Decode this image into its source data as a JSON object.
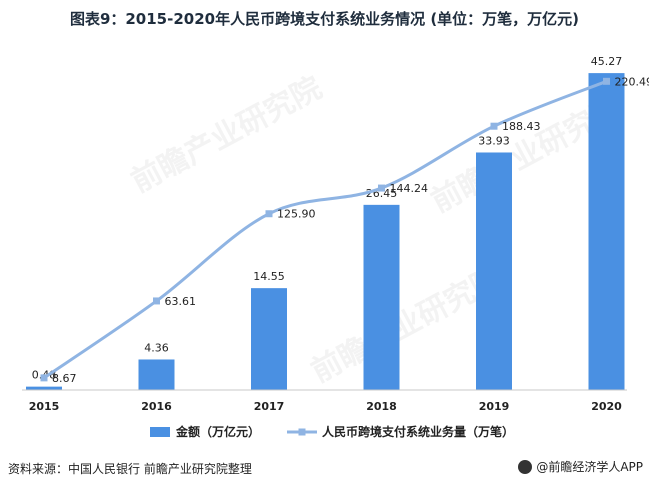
{
  "title": "图表9：2015-2020年人民币跨境支付系统业务情况 (单位：万笔，万亿元)",
  "source": "资料来源：中国人民银行 前瞻产业研究院整理",
  "brand": "@前瞻经济学人APP",
  "watermark": "前瞻产业研究院",
  "chart_data": {
    "type": "bar",
    "categories": [
      "2015",
      "2016",
      "2017",
      "2018",
      "2019",
      "2020"
    ],
    "series": [
      {
        "name": "金额（万亿元）",
        "type": "bar",
        "color": "#4a90e2",
        "values": [
          0.48,
          4.36,
          14.55,
          26.45,
          33.93,
          45.27
        ],
        "labels": [
          "0.48",
          "4.36",
          "14.55",
          "26.45",
          "33.93",
          "45.27"
        ]
      },
      {
        "name": "人民币跨境支付系统业务量（万笔）",
        "type": "line",
        "color": "#8fb4e3",
        "values": [
          8.67,
          63.61,
          125.9,
          144.24,
          188.43,
          220.49
        ],
        "labels": [
          "8.67",
          "63.61",
          "125.90",
          "144.24",
          "188.43",
          "220.49"
        ]
      }
    ],
    "legend_position": "bottom",
    "grid": false
  }
}
